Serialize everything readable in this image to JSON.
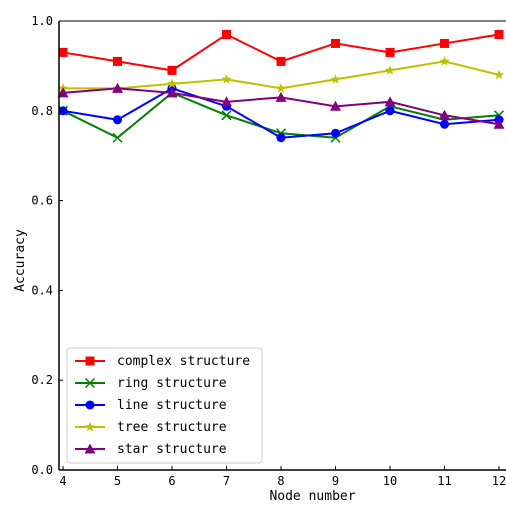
{
  "chart_data": {
    "type": "line",
    "xlabel": "Node number",
    "ylabel": "Accuracy",
    "x": [
      4,
      5,
      6,
      7,
      8,
      9,
      10,
      11,
      12
    ],
    "xlim": [
      4,
      12
    ],
    "ylim": [
      0,
      1
    ],
    "yticks": [
      "0.0",
      "0.2",
      "0.4",
      "0.6",
      "0.8",
      "1.0"
    ],
    "xticks": [
      "4",
      "5",
      "6",
      "7",
      "8",
      "9",
      "10",
      "11",
      "12"
    ],
    "legend_position": "lower-left",
    "grid": false,
    "series": [
      {
        "name": "complex structure",
        "color": "#ff0000",
        "marker": "square",
        "values": [
          0.93,
          0.91,
          0.89,
          0.97,
          0.91,
          0.95,
          0.93,
          0.95,
          0.97
        ]
      },
      {
        "name": "ring structure",
        "color": "#008000",
        "marker": "x",
        "values": [
          0.8,
          0.74,
          0.84,
          0.79,
          0.75,
          0.74,
          0.81,
          0.78,
          0.79
        ]
      },
      {
        "name": "line structure",
        "color": "#0000ff",
        "marker": "circle",
        "values": [
          0.8,
          0.78,
          0.85,
          0.81,
          0.74,
          0.75,
          0.8,
          0.77,
          0.78
        ]
      },
      {
        "name": "tree structure",
        "color": "#bfbf00",
        "marker": "star",
        "values": [
          0.85,
          0.85,
          0.86,
          0.87,
          0.85,
          0.87,
          0.89,
          0.91,
          0.88
        ]
      },
      {
        "name": "star structure",
        "color": "#800080",
        "marker": "triangle",
        "values": [
          0.84,
          0.85,
          0.84,
          0.82,
          0.83,
          0.81,
          0.82,
          0.79,
          0.77
        ]
      }
    ]
  }
}
